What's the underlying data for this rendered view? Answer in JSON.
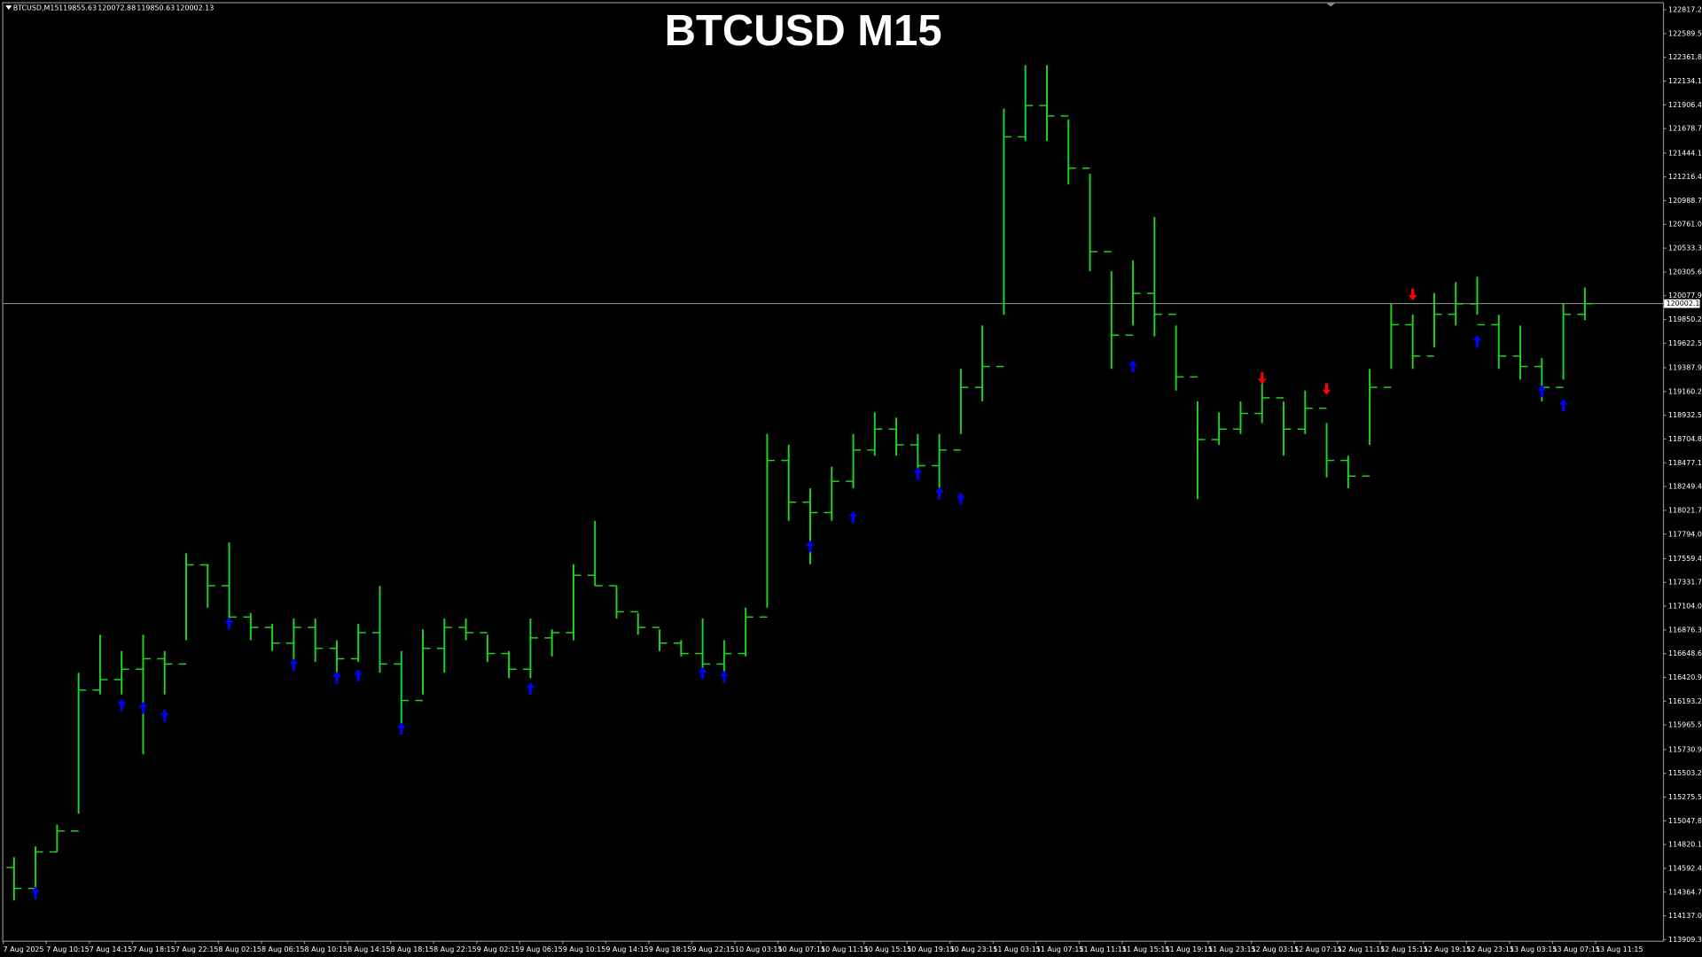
{
  "chart_data": {
    "type": "ohlc",
    "title": "BTCUSD M15",
    "symbol": "BTCUSD,M15",
    "ohlc_info": [
      119855.63,
      120072.88,
      119850.63,
      120002.13
    ],
    "last_price": 120002.13,
    "color": "#1fd31f",
    "bars": [
      [
        114600,
        114700,
        114284,
        114400
      ],
      [
        114400,
        114803,
        114300,
        114750
      ],
      [
        114750,
        115010,
        114750,
        114950
      ],
      [
        114950,
        116466,
        115115,
        116300
      ],
      [
        116300,
        116830,
        116258,
        116400
      ],
      [
        116400,
        116674,
        116258,
        116500
      ],
      [
        116500,
        116830,
        115687,
        116600
      ],
      [
        116600,
        116674,
        116258,
        116550
      ],
      [
        116550,
        117610,
        116778,
        117500
      ],
      [
        117500,
        117506,
        117090,
        117300
      ],
      [
        117300,
        117714,
        116882,
        117000
      ],
      [
        117000,
        117038,
        116778,
        116900
      ],
      [
        116900,
        116934,
        116674,
        116750
      ],
      [
        116750,
        116986,
        116518,
        116900
      ],
      [
        116900,
        116986,
        116570,
        116700
      ],
      [
        116700,
        116778,
        116466,
        116600
      ],
      [
        116600,
        116934,
        116570,
        116850
      ],
      [
        116850,
        117298,
        116466,
        116550
      ],
      [
        116550,
        116674,
        115895,
        116200
      ],
      [
        116200,
        116882,
        116258,
        116700
      ],
      [
        116700,
        116986,
        116466,
        116900
      ],
      [
        116900,
        116986,
        116778,
        116850
      ],
      [
        116850,
        116830,
        116570,
        116650
      ],
      [
        116650,
        116674,
        116414,
        116500
      ],
      [
        116500,
        116986,
        116414,
        116800
      ],
      [
        116800,
        116882,
        116622,
        116850
      ],
      [
        116850,
        117506,
        116778,
        117400
      ],
      [
        117400,
        117922,
        117298,
        117300
      ],
      [
        117300,
        117298,
        116986,
        117050
      ],
      [
        117050,
        117038,
        116830,
        116900
      ],
      [
        116900,
        116882,
        116674,
        116750
      ],
      [
        116750,
        116778,
        116622,
        116650
      ],
      [
        116650,
        116986,
        116466,
        116550
      ],
      [
        116550,
        116778,
        116466,
        116650
      ],
      [
        116650,
        117090,
        116622,
        117000
      ],
      [
        117000,
        118753,
        117090,
        118500
      ],
      [
        118500,
        118649,
        117922,
        118100
      ],
      [
        118100,
        118233,
        117506,
        118000
      ],
      [
        118000,
        118441,
        117922,
        118300
      ],
      [
        118300,
        118753,
        118233,
        118600
      ],
      [
        118600,
        118961,
        118545,
        118800
      ],
      [
        118800,
        118910,
        118545,
        118650
      ],
      [
        118650,
        118753,
        118337,
        118450
      ],
      [
        118450,
        118753,
        118129,
        118600
      ],
      [
        118600,
        119377,
        118753,
        119200
      ],
      [
        119200,
        119792,
        119065,
        119400
      ],
      [
        119400,
        121871,
        119896,
        121600
      ],
      [
        121600,
        122287,
        121559,
        121900
      ],
      [
        121900,
        122287,
        121559,
        121800
      ],
      [
        121800,
        121767,
        121143,
        121300
      ],
      [
        121300,
        121247,
        120312,
        120500
      ],
      [
        120500,
        120312,
        119377,
        119700
      ],
      [
        119700,
        120416,
        119792,
        120100
      ],
      [
        120100,
        120832,
        119688,
        119900
      ],
      [
        119900,
        119792,
        119169,
        119300
      ],
      [
        119300,
        119065,
        118129,
        118700
      ],
      [
        118700,
        118961,
        118649,
        118800
      ],
      [
        118800,
        119065,
        118753,
        118950
      ],
      [
        118950,
        119273,
        118857,
        119100
      ],
      [
        119100,
        119065,
        118545,
        118800
      ],
      [
        118800,
        119169,
        118753,
        119000
      ],
      [
        119000,
        118857,
        118337,
        118500
      ],
      [
        118500,
        118545,
        118233,
        118350
      ],
      [
        118350,
        119377,
        118649,
        119200
      ],
      [
        119200,
        120000,
        119377,
        119800
      ],
      [
        119800,
        119896,
        119377,
        119500
      ],
      [
        119500,
        120104,
        119584,
        119900
      ],
      [
        119900,
        120208,
        119792,
        120000
      ],
      [
        120000,
        120260,
        119896,
        119800
      ],
      [
        119800,
        119896,
        119377,
        119500
      ],
      [
        119500,
        119792,
        119273,
        119400
      ],
      [
        119400,
        119480,
        119065,
        119200
      ],
      [
        119200,
        120000,
        119273,
        119900
      ],
      [
        119900,
        120156,
        119844,
        120002.13
      ]
    ],
    "buy_signals": {
      "color": "#0000ff",
      "bar": [
        1,
        5,
        6,
        7,
        10,
        13,
        15,
        16,
        18,
        24,
        32,
        33,
        37,
        39,
        42,
        43,
        44,
        52,
        68,
        71,
        72
      ],
      "values": [
        114356,
        116154,
        116123,
        116050,
        116934,
        116539,
        116414,
        116435,
        115926,
        116310,
        116456,
        116425,
        117672,
        117953,
        118368,
        118181,
        118129,
        119397,
        119636,
        119158,
        119023
      ]
    },
    "sell_signals": {
      "color": "#ff0000",
      "bar": [
        58,
        61,
        65
      ],
      "values": [
        119293,
        119189,
        120094
      ]
    },
    "ylim": [
      113909.3,
      122817.2
    ],
    "yticks": [
      {
        "value": 122817.2,
        "label": "122817.20"
      },
      {
        "value": 122589.5,
        "label": "122589.50"
      },
      {
        "value": 122361.8,
        "label": "122361.80"
      },
      {
        "value": 122134.1,
        "label": "122134.10"
      },
      {
        "value": 121906.4,
        "label": "121906.40"
      },
      {
        "value": 121678.7,
        "label": "121678.70"
      },
      {
        "value": 121444.1,
        "label": "121444.10"
      },
      {
        "value": 121216.4,
        "label": "121216.40"
      },
      {
        "value": 120988.7,
        "label": "120988.70"
      },
      {
        "value": 120761.0,
        "label": "120761.00"
      },
      {
        "value": 120533.3,
        "label": "120533.30"
      },
      {
        "value": 120305.6,
        "label": "120305.60"
      },
      {
        "value": 120077.9,
        "label": "120077.90"
      },
      {
        "value": 119850.2,
        "label": "119850.20"
      },
      {
        "value": 119622.5,
        "label": "119622.50"
      },
      {
        "value": 119387.9,
        "label": "119387.90"
      },
      {
        "value": 119160.2,
        "label": "119160.20"
      },
      {
        "value": 118932.5,
        "label": "118932.50"
      },
      {
        "value": 118704.8,
        "label": "118704.80"
      },
      {
        "value": 118477.1,
        "label": "118477.10"
      },
      {
        "value": 118249.4,
        "label": "118249.40"
      },
      {
        "value": 118021.7,
        "label": "118021.70"
      },
      {
        "value": 117794.0,
        "label": "117794.00"
      },
      {
        "value": 117559.4,
        "label": "117559.40"
      },
      {
        "value": 117331.7,
        "label": "117331.70"
      },
      {
        "value": 117104.0,
        "label": "117104.00"
      },
      {
        "value": 116876.3,
        "label": "116876.30"
      },
      {
        "value": 116648.6,
        "label": "116648.60"
      },
      {
        "value": 116420.9,
        "label": "116420.90"
      },
      {
        "value": 116193.2,
        "label": "116193.20"
      },
      {
        "value": 115965.5,
        "label": "115965.50"
      },
      {
        "value": 115730.9,
        "label": "115730.90"
      },
      {
        "value": 115503.2,
        "label": "115503.20"
      },
      {
        "value": 115275.5,
        "label": "115275.50"
      },
      {
        "value": 115047.8,
        "label": "115047.80"
      },
      {
        "value": 114820.1,
        "label": "114820.10"
      },
      {
        "value": 114592.4,
        "label": "114592.40"
      },
      {
        "value": 114364.7,
        "label": "114364.70"
      },
      {
        "value": 114137.0,
        "label": "114137.00"
      },
      {
        "value": 113909.3,
        "label": "113909.30"
      }
    ],
    "x_labels": [
      "7 Aug 2025",
      "7 Aug 10:15",
      "7 Aug 14:15",
      "7 Aug 18:15",
      "7 Aug 22:15",
      "8 Aug 02:15",
      "8 Aug 06:15",
      "8 Aug 10:15",
      "8 Aug 14:15",
      "8 Aug 18:15",
      "8 Aug 22:15",
      "9 Aug 02:15",
      "9 Aug 06:15",
      "9 Aug 10:15",
      "9 Aug 14:15",
      "9 Aug 18:15",
      "9 Aug 22:15",
      "10 Aug 03:15",
      "10 Aug 07:15",
      "10 Aug 11:15",
      "10 Aug 15:15",
      "10 Aug 19:15",
      "10 Aug 23:15",
      "11 Aug 03:15",
      "11 Aug 07:15",
      "11 Aug 11:15",
      "11 Aug 15:15",
      "11 Aug 19:15",
      "11 Aug 23:15",
      "12 Aug 03:15",
      "12 Aug 07:15",
      "12 Aug 11:15",
      "12 Aug 15:15",
      "12 Aug 19:15",
      "12 Aug 23:15",
      "13 Aug 03:15",
      "13 Aug 07:15",
      "13 Aug 11:15"
    ]
  }
}
